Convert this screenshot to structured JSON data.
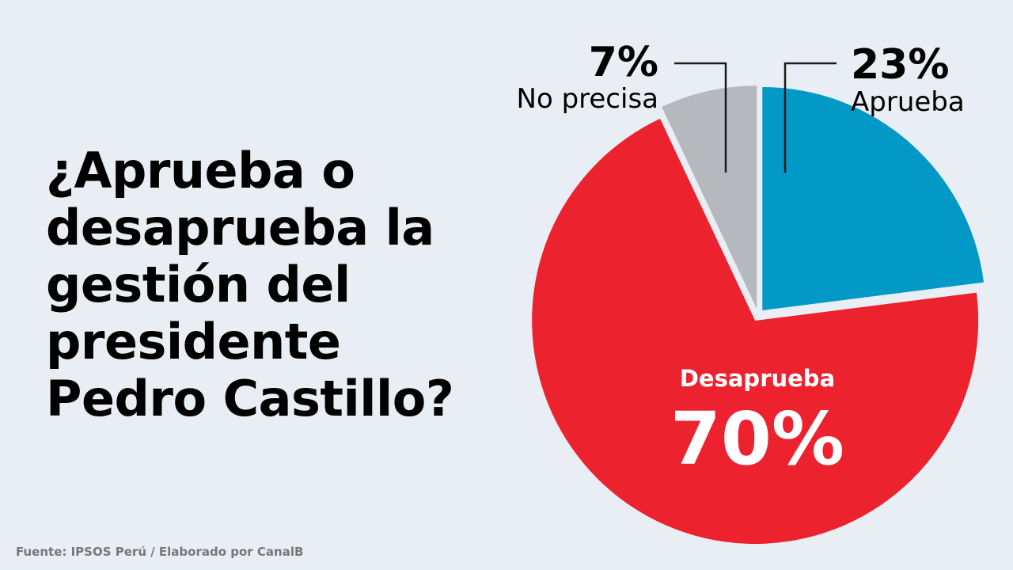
{
  "title_lines": [
    "¿Aprueba o",
    "desaprueba la",
    "gestión del",
    "presidente",
    "Pedro Castillo?"
  ],
  "source": "Fuente: IPSOS Perú / Elaborado por CanalB",
  "chart_data": {
    "type": "pie",
    "title": "¿Aprueba o desaprueba la gestión del presidente Pedro Castillo?",
    "slices": [
      {
        "label": "Aprueba",
        "value": 23,
        "display": "23%",
        "color": "#0399c7"
      },
      {
        "label": "Desaprueba",
        "value": 70,
        "display": "70%",
        "color": "#ec232e"
      },
      {
        "label": "No precisa",
        "value": 7,
        "display": "7%",
        "color": "#b5b9bd"
      }
    ],
    "start_angle": "12 o'clock",
    "direction": "clockwise",
    "slice_gaps": true
  },
  "colors": {
    "background": "#e9eef5",
    "text": "#000000",
    "leader_lines": "#1a1a1a",
    "label_on_red": "#ffffff",
    "source_text": "#777777"
  }
}
